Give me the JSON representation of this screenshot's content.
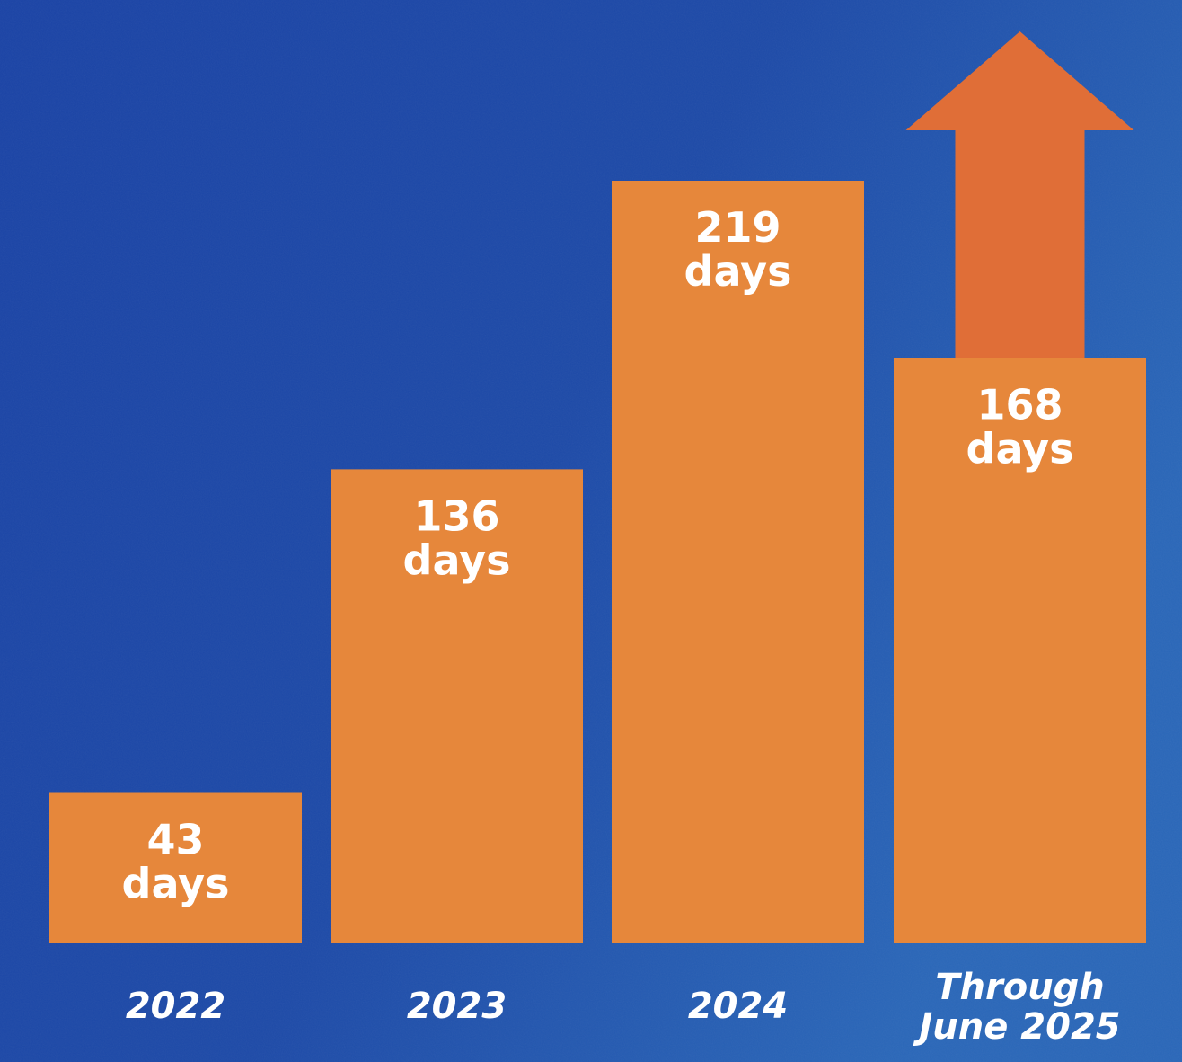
{
  "chart_data": {
    "type": "bar",
    "categories": [
      [
        "2022"
      ],
      [
        "2023"
      ],
      [
        "2024"
      ],
      [
        "Through",
        "June 2025"
      ]
    ],
    "values": [
      43,
      136,
      219,
      168
    ],
    "unit": "days",
    "value_labels": [
      "43",
      "136",
      "219",
      "168"
    ],
    "title": "",
    "xlabel": "",
    "ylabel": "",
    "ylim": [
      0,
      219
    ],
    "grid": false,
    "legend": "none",
    "annotations": [
      {
        "type": "up-arrow",
        "category_index": 3,
        "meaning": "increasing"
      }
    ],
    "colors": {
      "background_top_left": "#1a43a6",
      "background_bottom": "#1d4aa8",
      "background_right": "#2a67b9",
      "bar": "#e6873b",
      "arrow": "#e06e37",
      "text": "#ffffff"
    }
  }
}
